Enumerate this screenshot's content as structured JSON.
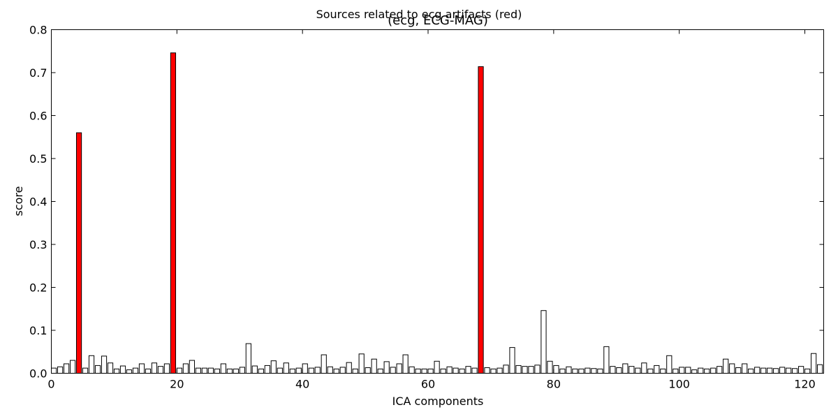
{
  "chart_data": {
    "type": "bar",
    "suptitle": "Sources related to ecg artifacts (red)",
    "title": "(ecg, ECG-MAG)",
    "xlabel": "ICA components",
    "ylabel": "score",
    "xlim": [
      0,
      123
    ],
    "ylim": [
      0,
      0.8
    ],
    "xticks": [
      0,
      20,
      40,
      60,
      80,
      100,
      120
    ],
    "yticks": [
      0.0,
      0.1,
      0.2,
      0.3,
      0.4,
      0.5,
      0.6,
      0.7,
      0.8
    ],
    "grid": false,
    "colors": {
      "normal": "#ffffff",
      "highlight": "#ff0000",
      "edge": "#000000"
    },
    "highlighted": [
      4,
      19,
      68
    ],
    "values": [
      0.012,
      0.015,
      0.022,
      0.03,
      0.56,
      0.012,
      0.041,
      0.018,
      0.04,
      0.024,
      0.01,
      0.017,
      0.008,
      0.012,
      0.022,
      0.01,
      0.024,
      0.016,
      0.022,
      0.746,
      0.012,
      0.022,
      0.03,
      0.012,
      0.012,
      0.012,
      0.01,
      0.022,
      0.01,
      0.01,
      0.014,
      0.069,
      0.017,
      0.01,
      0.018,
      0.029,
      0.012,
      0.024,
      0.01,
      0.012,
      0.022,
      0.012,
      0.014,
      0.043,
      0.015,
      0.01,
      0.014,
      0.025,
      0.01,
      0.045,
      0.013,
      0.033,
      0.01,
      0.027,
      0.014,
      0.022,
      0.043,
      0.015,
      0.01,
      0.01,
      0.01,
      0.028,
      0.01,
      0.015,
      0.012,
      0.01,
      0.016,
      0.012,
      0.714,
      0.013,
      0.01,
      0.012,
      0.019,
      0.06,
      0.018,
      0.016,
      0.016,
      0.019,
      0.146,
      0.028,
      0.018,
      0.01,
      0.015,
      0.01,
      0.01,
      0.012,
      0.011,
      0.01,
      0.062,
      0.016,
      0.013,
      0.022,
      0.016,
      0.012,
      0.024,
      0.01,
      0.018,
      0.01,
      0.041,
      0.01,
      0.014,
      0.014,
      0.008,
      0.012,
      0.01,
      0.012,
      0.016,
      0.033,
      0.022,
      0.013,
      0.022,
      0.01,
      0.014,
      0.012,
      0.012,
      0.011,
      0.014,
      0.012,
      0.011,
      0.016,
      0.01,
      0.046,
      0.02
    ]
  }
}
